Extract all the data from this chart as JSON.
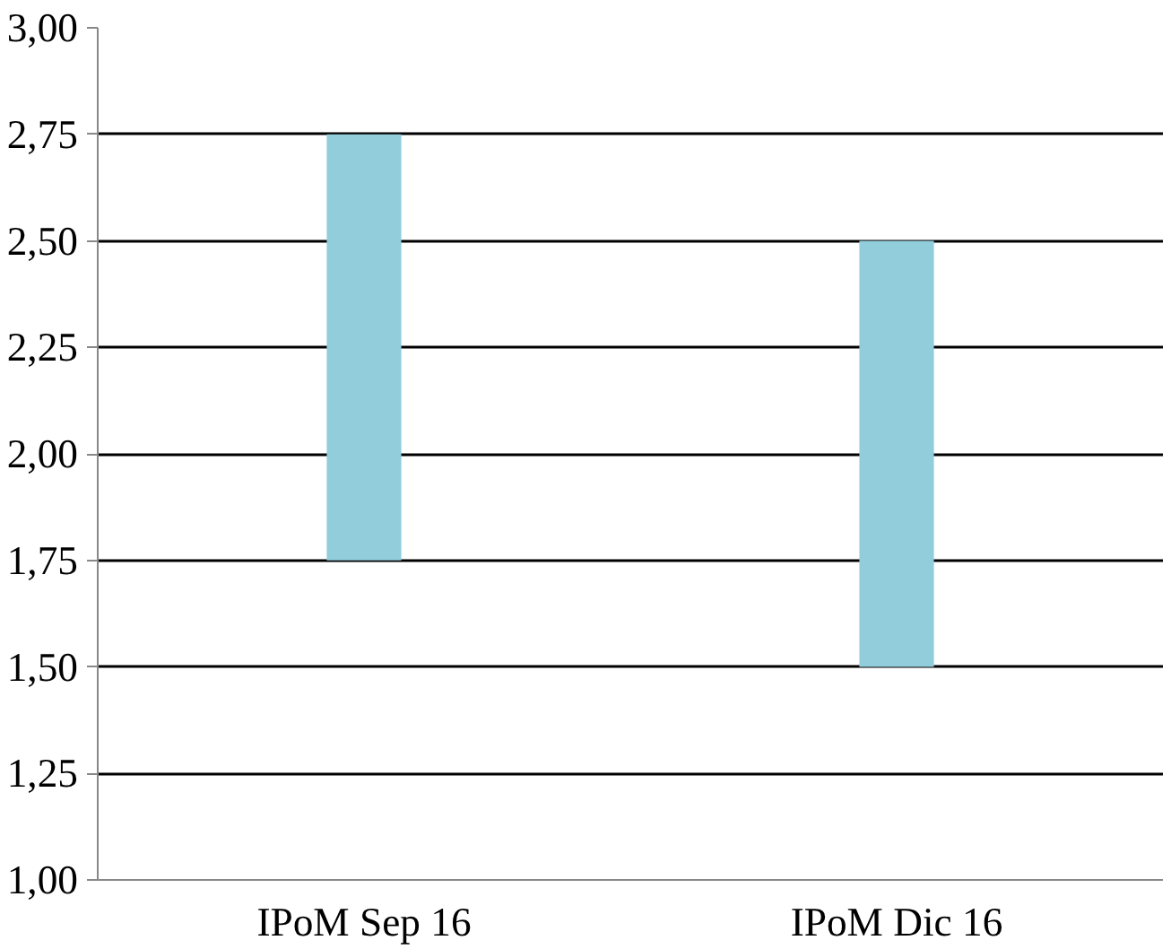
{
  "chart_data": {
    "type": "bar",
    "categories": [
      "IPoM Sep 16",
      "IPoM Dic 16"
    ],
    "values": [
      1.0,
      1.0
    ],
    "base": [
      1.75,
      1.5
    ],
    "color": "#92cddc",
    "ylim": [
      1.0,
      3.0
    ],
    "yticks": [
      {
        "value": 1.0,
        "label": "1,00"
      },
      {
        "value": 1.25,
        "label": "1,25"
      },
      {
        "value": 1.5,
        "label": "1,50"
      },
      {
        "value": 1.75,
        "label": "1,75"
      },
      {
        "value": 2.0,
        "label": "2,00"
      },
      {
        "value": 2.25,
        "label": "2,25"
      },
      {
        "value": 2.5,
        "label": "2,50"
      },
      {
        "value": 2.75,
        "label": "2,75"
      },
      {
        "value": 3.0,
        "label": "3,00"
      }
    ],
    "grid": "y"
  }
}
